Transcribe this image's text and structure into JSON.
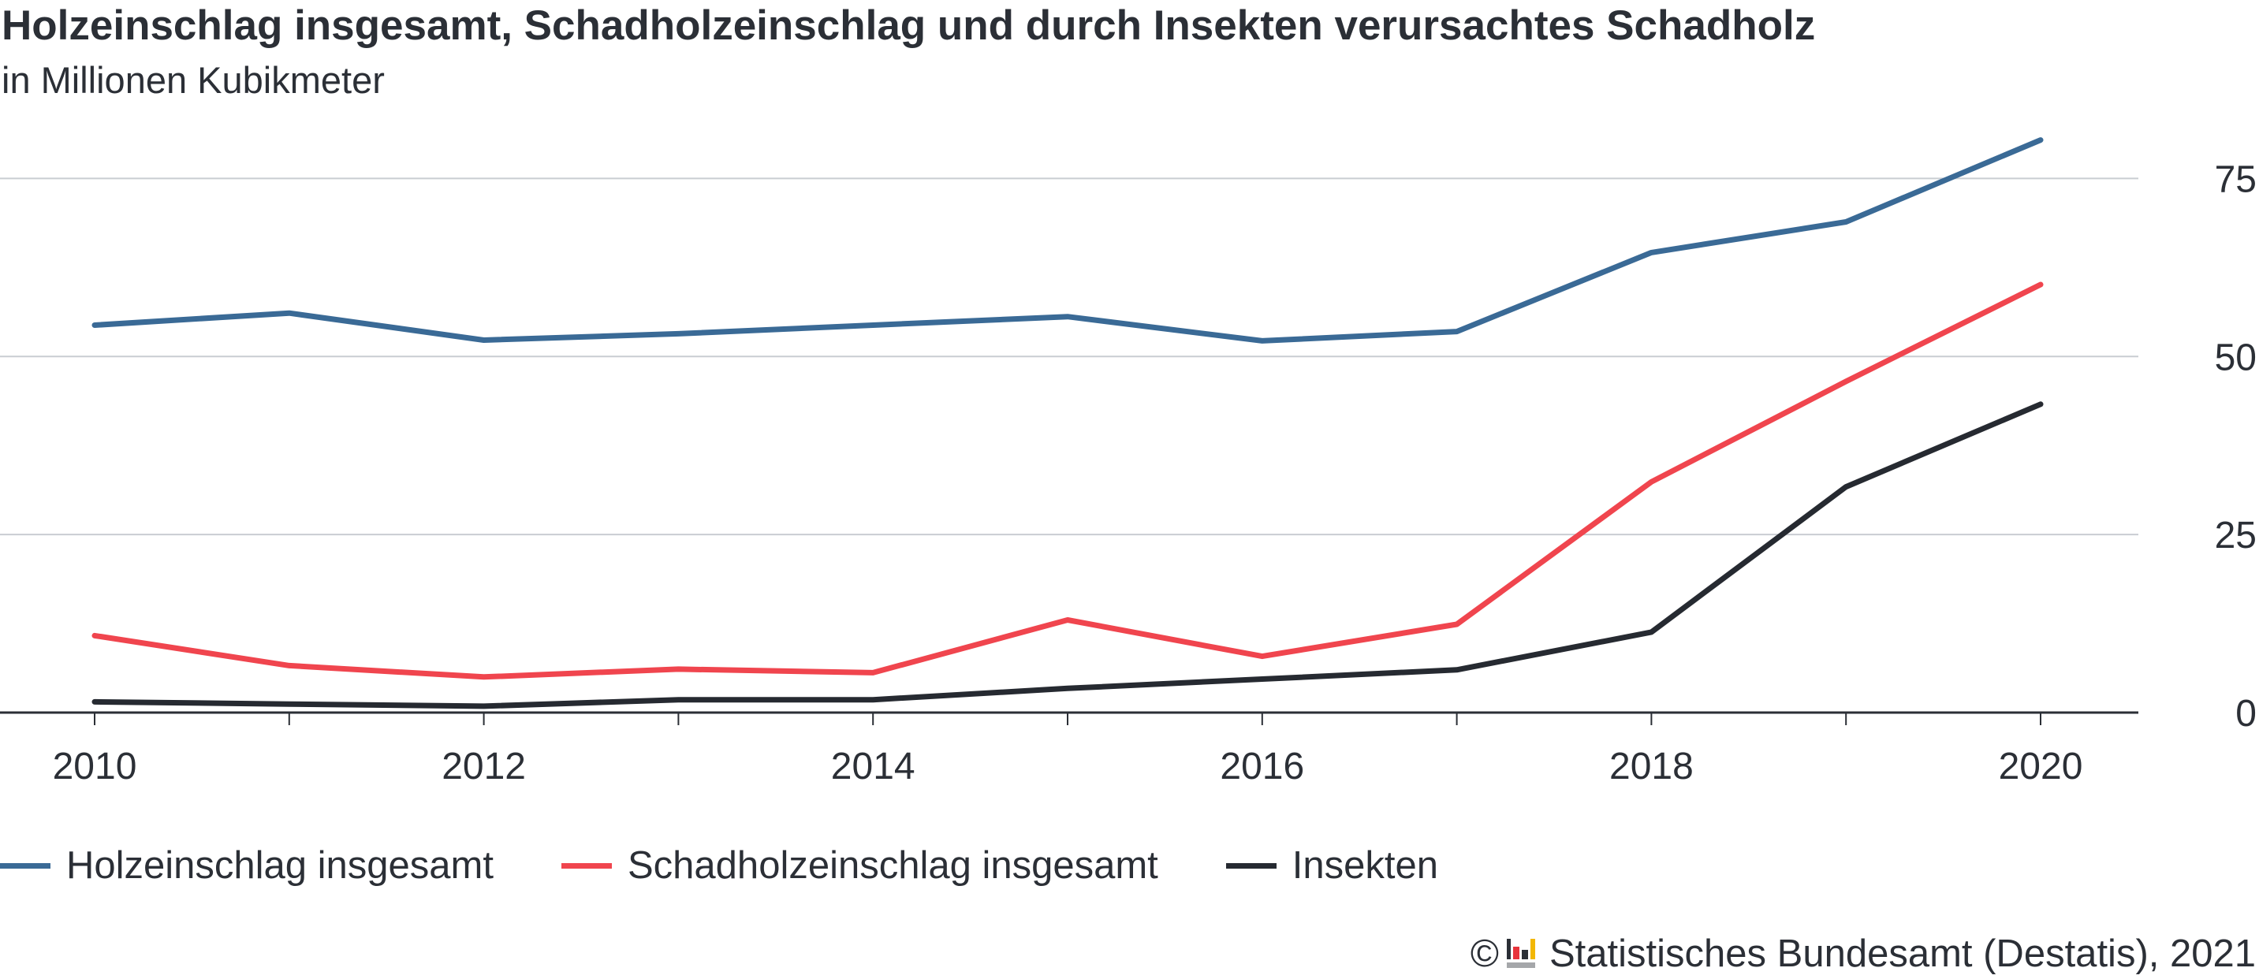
{
  "header": {
    "title": "Holzeinschlag insgesamt, Schadholzeinschlag und durch Insekten verursachtes Schadholz",
    "subtitle": "in Millionen Kubikmeter"
  },
  "chart_data": {
    "type": "line",
    "title": "Holzeinschlag insgesamt, Schadholzeinschlag und durch Insekten verursachtes Schadholz",
    "subtitle": "in Millionen Kubikmeter",
    "x": [
      2010,
      2011,
      2012,
      2013,
      2014,
      2015,
      2016,
      2017,
      2018,
      2019,
      2020
    ],
    "x_tick_labels": [
      "2010",
      "2012",
      "2014",
      "2016",
      "2018",
      "2020"
    ],
    "y_tick_labels": [
      "0",
      "25",
      "50",
      "75"
    ],
    "y_ticks": [
      0,
      25,
      50,
      75
    ],
    "ylim": [
      0,
      80.8
    ],
    "xlim": [
      2010,
      2020
    ],
    "grid": "horizontal",
    "y_axis_position": "right",
    "legend_position": "bottom-left",
    "series": [
      {
        "name": "Holzeinschlag insgesamt",
        "color": "#3a6a96",
        "values": [
          54.4,
          56.1,
          52.3,
          53.2,
          54.4,
          55.6,
          52.2,
          53.5,
          64.6,
          68.9,
          80.4
        ]
      },
      {
        "name": "Schadholzeinschlag insgesamt",
        "color": "#f0454e",
        "values": [
          10.8,
          6.6,
          5.0,
          6.1,
          5.6,
          13.0,
          7.9,
          12.4,
          32.4,
          46.5,
          60.1
        ]
      },
      {
        "name": "Insekten",
        "color": "#262a31",
        "values": [
          1.5,
          1.2,
          0.9,
          1.8,
          1.8,
          3.4,
          4.7,
          6.0,
          11.3,
          31.7,
          43.3
        ]
      }
    ]
  },
  "footer": {
    "copyright_symbol": "©",
    "source": "Statistisches Bundesamt (Destatis), 2021"
  }
}
